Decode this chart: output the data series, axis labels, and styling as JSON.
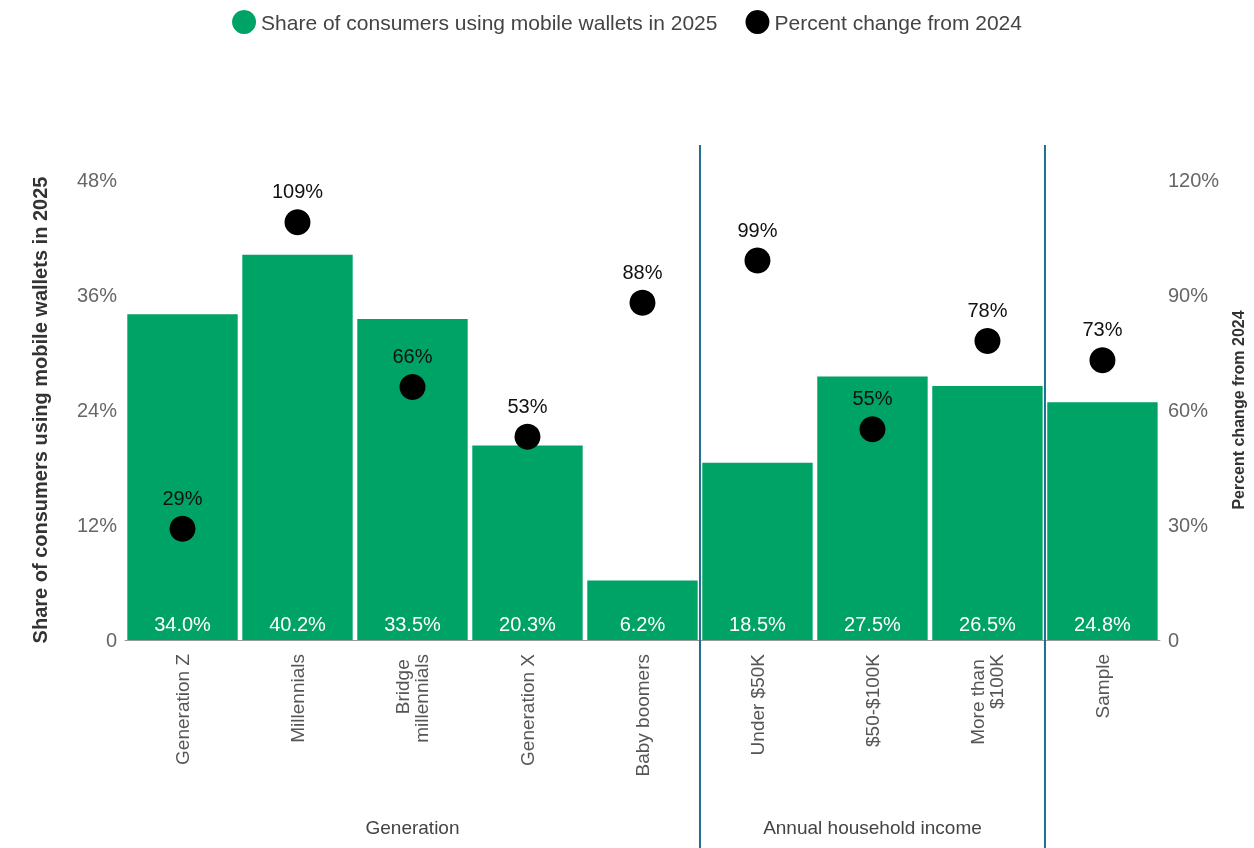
{
  "chart_data": {
    "type": "bar",
    "categories": [
      "Generation Z",
      "Millennials",
      "Bridge millennials",
      "Generation X",
      "Baby boomers",
      "Under $50K",
      "$50-$100K",
      "More than $100K",
      "Sample"
    ],
    "series": [
      {
        "name": "Share of consumers using mobile wallets in 2025",
        "type": "bar",
        "color": "#00a366",
        "values": [
          34.0,
          40.2,
          33.5,
          20.3,
          6.2,
          18.5,
          27.5,
          26.5,
          24.8
        ],
        "value_labels": [
          "34.0%",
          "40.2%",
          "33.5%",
          "20.3%",
          "6.2%",
          "18.5%",
          "27.5%",
          "26.5%",
          "24.8%"
        ]
      },
      {
        "name": "Percent change from 2024",
        "type": "scatter",
        "axis": "y2",
        "color": "#000000",
        "values": [
          29,
          109,
          66,
          53,
          88,
          99,
          55,
          78,
          73
        ],
        "value_labels": [
          "29%",
          "109%",
          "66%",
          "53%",
          "88%",
          "99%",
          "55%",
          "78%",
          "73%"
        ]
      }
    ],
    "ylabel": "Share of consumers using mobile wallets in 2025",
    "y2label": "Percent change from 2024",
    "ylim": [
      0,
      48
    ],
    "yticks": [
      {
        "value": 0,
        "label": "0"
      },
      {
        "value": 12,
        "label": "12%"
      },
      {
        "value": 24,
        "label": "24%"
      },
      {
        "value": 36,
        "label": "36%"
      },
      {
        "value": 48,
        "label": "48%"
      }
    ],
    "y2lim": [
      0,
      120
    ],
    "y2ticks": [
      {
        "value": 0,
        "label": "0"
      },
      {
        "value": 30,
        "label": "30%"
      },
      {
        "value": 60,
        "label": "60%"
      },
      {
        "value": 90,
        "label": "90%"
      },
      {
        "value": 120,
        "label": "120%"
      }
    ],
    "annotations": [
      "Generation",
      "Annual household income"
    ],
    "grid": false,
    "legend": "top",
    "marker": "circle"
  }
}
